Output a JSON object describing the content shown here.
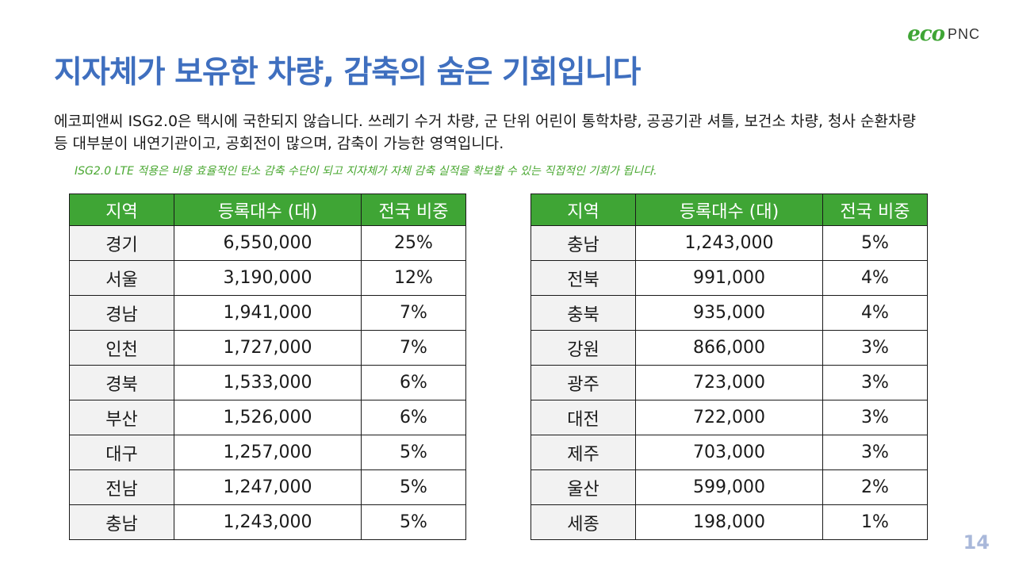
{
  "logo": {
    "eco": "eco",
    "pnc": "PNC"
  },
  "title": "지자체가 보유한 차량, 감축의 숨은 기회입니다",
  "body_text": "에코피앤씨 ISG2.0은 택시에 국한되지 않습니다. 쓰레기 수거 차량, 군 단위 어린이 통학차량, 공공기관 셔틀, 보건소 차량, 청사 순환차량 등 대부분이 내연기관이고, 공회전이 많으며, 감축이 가능한 영역입니다.",
  "note": "ISG2.0 LTE 적용은 비용 효율적인 탄소 감축 수단이 되고 지자체가 자체 감축 실적을 확보할 수 있는 직접적인 기회가 됩니다.",
  "table_headers": [
    "지역",
    "등록대수 (대)",
    "전국 비중"
  ],
  "left_table": [
    [
      "경기",
      "6,550,000",
      "25%"
    ],
    [
      "서울",
      "3,190,000",
      "12%"
    ],
    [
      "경남",
      "1,941,000",
      "7%"
    ],
    [
      "인천",
      "1,727,000",
      "7%"
    ],
    [
      "경북",
      "1,533,000",
      "6%"
    ],
    [
      "부산",
      "1,526,000",
      "6%"
    ],
    [
      "대구",
      "1,257,000",
      "5%"
    ],
    [
      "전남",
      "1,247,000",
      "5%"
    ],
    [
      "충남",
      "1,243,000",
      "5%"
    ]
  ],
  "right_table": [
    [
      "충남",
      "1,243,000",
      "5%"
    ],
    [
      "전북",
      "991,000",
      "4%"
    ],
    [
      "충북",
      "935,000",
      "4%"
    ],
    [
      "강원",
      "866,000",
      "3%"
    ],
    [
      "광주",
      "723,000",
      "3%"
    ],
    [
      "대전",
      "722,000",
      "3%"
    ],
    [
      "제주",
      "703,000",
      "3%"
    ],
    [
      "울산",
      "599,000",
      "2%"
    ],
    [
      "세종",
      "198,000",
      "1%"
    ]
  ],
  "page_number": "14",
  "colors": {
    "title": "#3f6fbf",
    "header_bg": "#3fa535",
    "note": "#4aa832",
    "page_number": "#a9b8da"
  }
}
